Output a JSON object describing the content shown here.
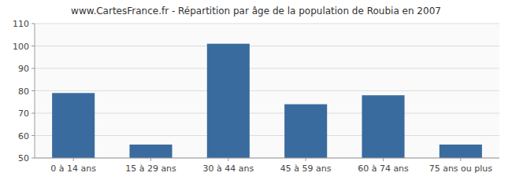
{
  "chart_data": {
    "type": "bar",
    "title": "www.CartesFrance.fr - Répartition par âge de la population de Roubia en 2007",
    "categories": [
      "0 à 14 ans",
      "15 à 29 ans",
      "30 à 44 ans",
      "45 à 59 ans",
      "60 à 74 ans",
      "75 ans ou plus"
    ],
    "values": [
      79,
      56,
      101,
      74,
      78,
      56
    ],
    "color": "#3a6b9e",
    "ylim": [
      50,
      110
    ],
    "yticks": [
      50,
      60,
      70,
      80,
      90,
      100,
      110
    ],
    "grid": true
  }
}
